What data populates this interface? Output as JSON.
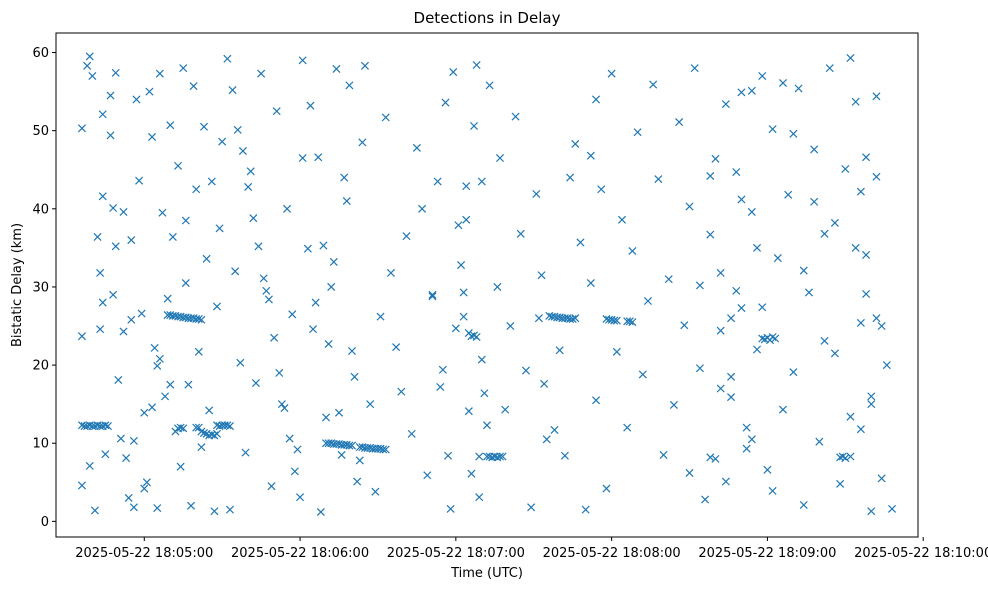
{
  "chart_data": {
    "type": "scatter",
    "title": "Detections in Delay",
    "xlabel": "Time (UTC)",
    "ylabel": "Bistatic Delay (km)",
    "marker": "x",
    "color": "#1f77b4",
    "xlim": [
      -10,
      322
    ],
    "ylim": [
      -2,
      62.5
    ],
    "x_units": "seconds after 2025-05-22 18:04:36",
    "xticks": [
      {
        "value": 24,
        "label": "2025-05-22 18:05:00"
      },
      {
        "value": 84,
        "label": "2025-05-22 18:06:00"
      },
      {
        "value": 144,
        "label": "2025-05-22 18:07:00"
      },
      {
        "value": 204,
        "label": "2025-05-22 18:08:00"
      },
      {
        "value": 264,
        "label": "2025-05-22 18:09:00"
      },
      {
        "value": 324,
        "label": "2025-05-22 18:10:00"
      }
    ],
    "yticks": [
      {
        "value": 0,
        "label": "0"
      },
      {
        "value": 10,
        "label": "10"
      },
      {
        "value": 20,
        "label": "20"
      },
      {
        "value": 30,
        "label": "30"
      },
      {
        "value": 40,
        "label": "40"
      },
      {
        "value": 50,
        "label": "50"
      },
      {
        "value": 60,
        "label": "60"
      }
    ],
    "points": [
      [
        0,
        12.3
      ],
      [
        1,
        12.2
      ],
      [
        2,
        12.2
      ],
      [
        3,
        12.3
      ],
      [
        4,
        12.2
      ],
      [
        5,
        12.2
      ],
      [
        6,
        12.3
      ],
      [
        7,
        12.2
      ],
      [
        8,
        12.2
      ],
      [
        9,
        12.3
      ],
      [
        10,
        12.2
      ],
      [
        0,
        50.3
      ],
      [
        0,
        23.7
      ],
      [
        0,
        4.6
      ],
      [
        2,
        58.3
      ],
      [
        3,
        59.5
      ],
      [
        4,
        57.0
      ],
      [
        3,
        7.1
      ],
      [
        5,
        1.4
      ],
      [
        6,
        36.4
      ],
      [
        7,
        31.8
      ],
      [
        7,
        24.6
      ],
      [
        8,
        52.1
      ],
      [
        8,
        41.6
      ],
      [
        8,
        28.0
      ],
      [
        9,
        8.6
      ],
      [
        11,
        54.5
      ],
      [
        11,
        49.4
      ],
      [
        12,
        29.0
      ],
      [
        13,
        57.4
      ],
      [
        13,
        35.2
      ],
      [
        14,
        18.1
      ],
      [
        15,
        10.6
      ],
      [
        16,
        39.6
      ],
      [
        17,
        8.1
      ],
      [
        18,
        3.0
      ],
      [
        19,
        36.0
      ],
      [
        20,
        1.8
      ],
      [
        21,
        54.0
      ],
      [
        22,
        43.6
      ],
      [
        23,
        26.6
      ],
      [
        24,
        13.9
      ],
      [
        25,
        5.0
      ],
      [
        26,
        55.0
      ],
      [
        27,
        49.2
      ],
      [
        28,
        22.2
      ],
      [
        29,
        1.7
      ],
      [
        30,
        57.3
      ],
      [
        31,
        39.5
      ],
      [
        32,
        16.0
      ],
      [
        33,
        28.5
      ],
      [
        34,
        50.7
      ],
      [
        35,
        36.4
      ],
      [
        36,
        11.5
      ],
      [
        37,
        45.5
      ],
      [
        38,
        7.0
      ],
      [
        39,
        58.0
      ],
      [
        40,
        30.5
      ],
      [
        41,
        17.5
      ],
      [
        42,
        2.0
      ],
      [
        43,
        55.7
      ],
      [
        44,
        42.5
      ],
      [
        45,
        21.7
      ],
      [
        46,
        9.5
      ],
      [
        47,
        50.5
      ],
      [
        48,
        33.6
      ],
      [
        49,
        14.2
      ],
      [
        50,
        43.5
      ],
      [
        51,
        1.3
      ],
      [
        52,
        27.5
      ],
      [
        53,
        37.5
      ],
      [
        54,
        48.6
      ],
      [
        27,
        14.6
      ],
      [
        29,
        19.9
      ],
      [
        20,
        10.3
      ],
      [
        16,
        24.3
      ],
      [
        24,
        4.2
      ],
      [
        34,
        17.5
      ],
      [
        19,
        25.8
      ],
      [
        30,
        20.8
      ],
      [
        12,
        40.1
      ],
      [
        40,
        38.5
      ],
      [
        33,
        26.4
      ],
      [
        34,
        26.4
      ],
      [
        35,
        26.3
      ],
      [
        36,
        26.3
      ],
      [
        37,
        26.2
      ],
      [
        38,
        26.2
      ],
      [
        39,
        26.1
      ],
      [
        40,
        26.1
      ],
      [
        41,
        26.0
      ],
      [
        42,
        26.0
      ],
      [
        43,
        26.0
      ],
      [
        44,
        25.9
      ],
      [
        45,
        25.9
      ],
      [
        46,
        25.8
      ],
      [
        37,
        11.9
      ],
      [
        38,
        12.0
      ],
      [
        39,
        11.9
      ],
      [
        44,
        12.0
      ],
      [
        45,
        12.0
      ],
      [
        46,
        11.5
      ],
      [
        47,
        11.3
      ],
      [
        48,
        11.2
      ],
      [
        49,
        11.0
      ],
      [
        50,
        11.1
      ],
      [
        51,
        11.0
      ],
      [
        52,
        11.2
      ],
      [
        52,
        12.3
      ],
      [
        53,
        12.2
      ],
      [
        54,
        12.3
      ],
      [
        55,
        12.3
      ],
      [
        56,
        12.3
      ],
      [
        57,
        12.2
      ],
      [
        56,
        59.2
      ],
      [
        58,
        55.2
      ],
      [
        60,
        50.1
      ],
      [
        62,
        47.4
      ],
      [
        64,
        42.8
      ],
      [
        66,
        38.8
      ],
      [
        68,
        35.2
      ],
      [
        70,
        31.1
      ],
      [
        72,
        28.4
      ],
      [
        74,
        23.5
      ],
      [
        76,
        19.0
      ],
      [
        78,
        14.5
      ],
      [
        80,
        10.6
      ],
      [
        82,
        6.4
      ],
      [
        84,
        3.1
      ],
      [
        57,
        1.5
      ],
      [
        59,
        32.0
      ],
      [
        61,
        20.3
      ],
      [
        63,
        8.8
      ],
      [
        65,
        44.8
      ],
      [
        67,
        17.7
      ],
      [
        69,
        57.3
      ],
      [
        71,
        29.5
      ],
      [
        73,
        4.5
      ],
      [
        75,
        52.5
      ],
      [
        77,
        15.0
      ],
      [
        79,
        40.0
      ],
      [
        81,
        26.5
      ],
      [
        83,
        9.2
      ],
      [
        85,
        46.5
      ],
      [
        87,
        34.9
      ],
      [
        89,
        24.6
      ],
      [
        91,
        46.6
      ],
      [
        93,
        35.3
      ],
      [
        95,
        22.7
      ],
      [
        97,
        33.2
      ],
      [
        99,
        13.9
      ],
      [
        101,
        44.0
      ],
      [
        103,
        55.8
      ],
      [
        105,
        18.5
      ],
      [
        107,
        7.8
      ],
      [
        109,
        58.3
      ],
      [
        85,
        59.0
      ],
      [
        88,
        53.2
      ],
      [
        90,
        28.0
      ],
      [
        92,
        1.2
      ],
      [
        94,
        13.3
      ],
      [
        96,
        30.0
      ],
      [
        98,
        57.9
      ],
      [
        100,
        8.5
      ],
      [
        102,
        41.0
      ],
      [
        104,
        21.8
      ],
      [
        106,
        5.1
      ],
      [
        108,
        48.5
      ],
      [
        94,
        10.0
      ],
      [
        95,
        10.0
      ],
      [
        96,
        10.0
      ],
      [
        97,
        9.9
      ],
      [
        98,
        9.9
      ],
      [
        99,
        9.9
      ],
      [
        100,
        9.8
      ],
      [
        101,
        9.8
      ],
      [
        102,
        9.8
      ],
      [
        103,
        9.7
      ],
      [
        104,
        9.7
      ],
      [
        107,
        9.5
      ],
      [
        108,
        9.5
      ],
      [
        109,
        9.4
      ],
      [
        110,
        9.4
      ],
      [
        111,
        9.4
      ],
      [
        112,
        9.3
      ],
      [
        113,
        9.3
      ],
      [
        114,
        9.3
      ],
      [
        115,
        9.3
      ],
      [
        116,
        9.2
      ],
      [
        117,
        9.2
      ],
      [
        111,
        15.0
      ],
      [
        113,
        3.8
      ],
      [
        115,
        26.2
      ],
      [
        117,
        51.7
      ],
      [
        119,
        31.8
      ],
      [
        121,
        22.3
      ],
      [
        123,
        16.6
      ],
      [
        125,
        36.5
      ],
      [
        127,
        11.2
      ],
      [
        129,
        47.8
      ],
      [
        131,
        40.0
      ],
      [
        133,
        5.9
      ],
      [
        135,
        28.8
      ],
      [
        137,
        43.5
      ],
      [
        139,
        19.4
      ],
      [
        141,
        8.4
      ],
      [
        143,
        57.5
      ],
      [
        145,
        37.9
      ],
      [
        147,
        26.2
      ],
      [
        149,
        14.1
      ],
      [
        151,
        50.6
      ],
      [
        153,
        3.1
      ],
      [
        135,
        29.0
      ],
      [
        138,
        17.2
      ],
      [
        140,
        53.6
      ],
      [
        142,
        1.6
      ],
      [
        144,
        24.7
      ],
      [
        146,
        32.8
      ],
      [
        148,
        42.9
      ],
      [
        150,
        6.1
      ],
      [
        152,
        58.4
      ],
      [
        154,
        20.7
      ],
      [
        156,
        12.3
      ],
      [
        147,
        29.3
      ],
      [
        148,
        38.6
      ],
      [
        149,
        24.1
      ],
      [
        150,
        23.7
      ],
      [
        151,
        23.8
      ],
      [
        152,
        23.6
      ],
      [
        153,
        8.3
      ],
      [
        154,
        43.5
      ],
      [
        155,
        16.4
      ],
      [
        156,
        8.3
      ],
      [
        157,
        55.8
      ],
      [
        157,
        8.3
      ],
      [
        158,
        8.2
      ],
      [
        159,
        8.3
      ],
      [
        160,
        8.2
      ],
      [
        161,
        8.3
      ],
      [
        162,
        8.3
      ],
      [
        160,
        30.0
      ],
      [
        161,
        46.5
      ],
      [
        163,
        14.3
      ],
      [
        165,
        25.0
      ],
      [
        167,
        51.8
      ],
      [
        169,
        36.8
      ],
      [
        171,
        19.3
      ],
      [
        173,
        1.8
      ],
      [
        175,
        41.9
      ],
      [
        177,
        31.5
      ],
      [
        179,
        10.5
      ],
      [
        180,
        26.3
      ],
      [
        181,
        26.2
      ],
      [
        182,
        26.2
      ],
      [
        183,
        26.1
      ],
      [
        184,
        26.1
      ],
      [
        185,
        26.0
      ],
      [
        186,
        26.0
      ],
      [
        187,
        26.0
      ],
      [
        188,
        25.9
      ],
      [
        189,
        25.9
      ],
      [
        190,
        26.0
      ],
      [
        176,
        26.0
      ],
      [
        178,
        17.6
      ],
      [
        182,
        11.7
      ],
      [
        184,
        21.9
      ],
      [
        186,
        8.4
      ],
      [
        188,
        44.0
      ],
      [
        190,
        48.3
      ],
      [
        192,
        35.7
      ],
      [
        194,
        1.5
      ],
      [
        196,
        30.5
      ],
      [
        198,
        15.5
      ],
      [
        202,
        25.9
      ],
      [
        203,
        25.8
      ],
      [
        204,
        25.8
      ],
      [
        205,
        25.7
      ],
      [
        206,
        25.7
      ],
      [
        210,
        25.6
      ],
      [
        211,
        25.6
      ],
      [
        212,
        25.5
      ],
      [
        196,
        46.8
      ],
      [
        198,
        54.0
      ],
      [
        200,
        42.5
      ],
      [
        202,
        4.2
      ],
      [
        204,
        57.3
      ],
      [
        206,
        21.7
      ],
      [
        208,
        38.6
      ],
      [
        210,
        12.0
      ],
      [
        212,
        34.6
      ],
      [
        214,
        49.8
      ],
      [
        216,
        18.8
      ],
      [
        218,
        28.2
      ],
      [
        220,
        55.9
      ],
      [
        222,
        43.8
      ],
      [
        224,
        8.5
      ],
      [
        226,
        31.0
      ],
      [
        228,
        14.9
      ],
      [
        230,
        51.1
      ],
      [
        232,
        25.1
      ],
      [
        234,
        40.3
      ],
      [
        236,
        58.0
      ],
      [
        238,
        19.6
      ],
      [
        240,
        2.8
      ],
      [
        242,
        36.7
      ],
      [
        244,
        46.4
      ],
      [
        246,
        24.4
      ],
      [
        248,
        53.4
      ],
      [
        250,
        15.9
      ],
      [
        252,
        29.5
      ],
      [
        254,
        41.2
      ],
      [
        256,
        9.3
      ],
      [
        258,
        55.1
      ],
      [
        260,
        35.0
      ],
      [
        242,
        8.2
      ],
      [
        244,
        8.0
      ],
      [
        246,
        31.8
      ],
      [
        248,
        5.1
      ],
      [
        250,
        18.5
      ],
      [
        252,
        44.7
      ],
      [
        254,
        27.3
      ],
      [
        256,
        12.0
      ],
      [
        258,
        39.6
      ],
      [
        260,
        22.0
      ],
      [
        262,
        57.0
      ],
      [
        262,
        23.4
      ],
      [
        263,
        23.3
      ],
      [
        264,
        23.5
      ],
      [
        265,
        23.2
      ],
      [
        266,
        23.6
      ],
      [
        267,
        23.4
      ],
      [
        264,
        6.6
      ],
      [
        266,
        50.2
      ],
      [
        268,
        33.7
      ],
      [
        270,
        14.3
      ],
      [
        272,
        41.8
      ],
      [
        274,
        19.1
      ],
      [
        276,
        55.4
      ],
      [
        278,
        2.1
      ],
      [
        280,
        29.3
      ],
      [
        282,
        47.6
      ],
      [
        284,
        10.2
      ],
      [
        286,
        36.8
      ],
      [
        288,
        58.0
      ],
      [
        290,
        21.5
      ],
      [
        292,
        4.8
      ],
      [
        294,
        45.1
      ],
      [
        296,
        13.4
      ],
      [
        298,
        53.7
      ],
      [
        300,
        25.4
      ],
      [
        302,
        34.1
      ],
      [
        304,
        1.3
      ],
      [
        306,
        44.1
      ],
      [
        292,
        8.2
      ],
      [
        293,
        8.3
      ],
      [
        294,
        8.1
      ],
      [
        296,
        8.3
      ],
      [
        300,
        42.2
      ],
      [
        302,
        29.1
      ],
      [
        304,
        16.0
      ],
      [
        306,
        54.4
      ],
      [
        308,
        25.0
      ],
      [
        310,
        20.0
      ],
      [
        312,
        1.6
      ],
      [
        296,
        59.3
      ],
      [
        298,
        35.0
      ],
      [
        300,
        11.8
      ],
      [
        302,
        46.6
      ],
      [
        304,
        15.0
      ],
      [
        306,
        26.0
      ],
      [
        308,
        5.5
      ],
      [
        290,
        38.2
      ],
      [
        286,
        23.1
      ],
      [
        282,
        40.9
      ],
      [
        278,
        32.1
      ],
      [
        274,
        49.6
      ],
      [
        270,
        56.1
      ],
      [
        266,
        3.9
      ],
      [
        262,
        27.4
      ],
      [
        258,
        10.5
      ],
      [
        254,
        54.9
      ],
      [
        250,
        26.0
      ],
      [
        246,
        17.0
      ],
      [
        242,
        44.2
      ],
      [
        238,
        30.2
      ],
      [
        234,
        6.2
      ]
    ]
  }
}
